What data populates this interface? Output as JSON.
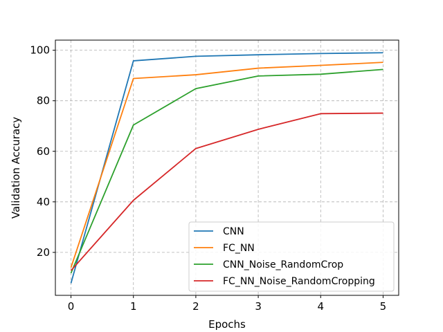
{
  "chart_data": {
    "type": "line",
    "title": "",
    "xlabel": "Epochs",
    "ylabel": "Validation Accuracy",
    "x": [
      0,
      1,
      2,
      3,
      4,
      5
    ],
    "xlim": [
      -0.25,
      5.25
    ],
    "ylim": [
      3,
      104
    ],
    "xticks": [
      "0",
      "1",
      "2",
      "3",
      "4",
      "5"
    ],
    "yticks": [
      "20",
      "40",
      "60",
      "80",
      "100"
    ],
    "ytick_values": [
      20,
      40,
      60,
      80,
      100
    ],
    "grid": true,
    "legend_position": "bottom-right",
    "series": [
      {
        "name": "CNN",
        "color": "#1f77b4",
        "values": [
          7.8,
          95.8,
          97.6,
          98.2,
          98.7,
          99.0
        ]
      },
      {
        "name": "FC_NN",
        "color": "#ff7f0e",
        "values": [
          14.0,
          88.8,
          90.3,
          92.9,
          94.0,
          95.2
        ]
      },
      {
        "name": "CNN_Noise_RandomCrop",
        "color": "#2ca02c",
        "values": [
          11.8,
          70.4,
          84.8,
          89.8,
          90.5,
          92.4
        ]
      },
      {
        "name": "FC_NN_Noise_RandomCropping",
        "color": "#d62728",
        "values": [
          12.8,
          40.6,
          61.1,
          68.7,
          74.9,
          75.1
        ]
      }
    ]
  }
}
